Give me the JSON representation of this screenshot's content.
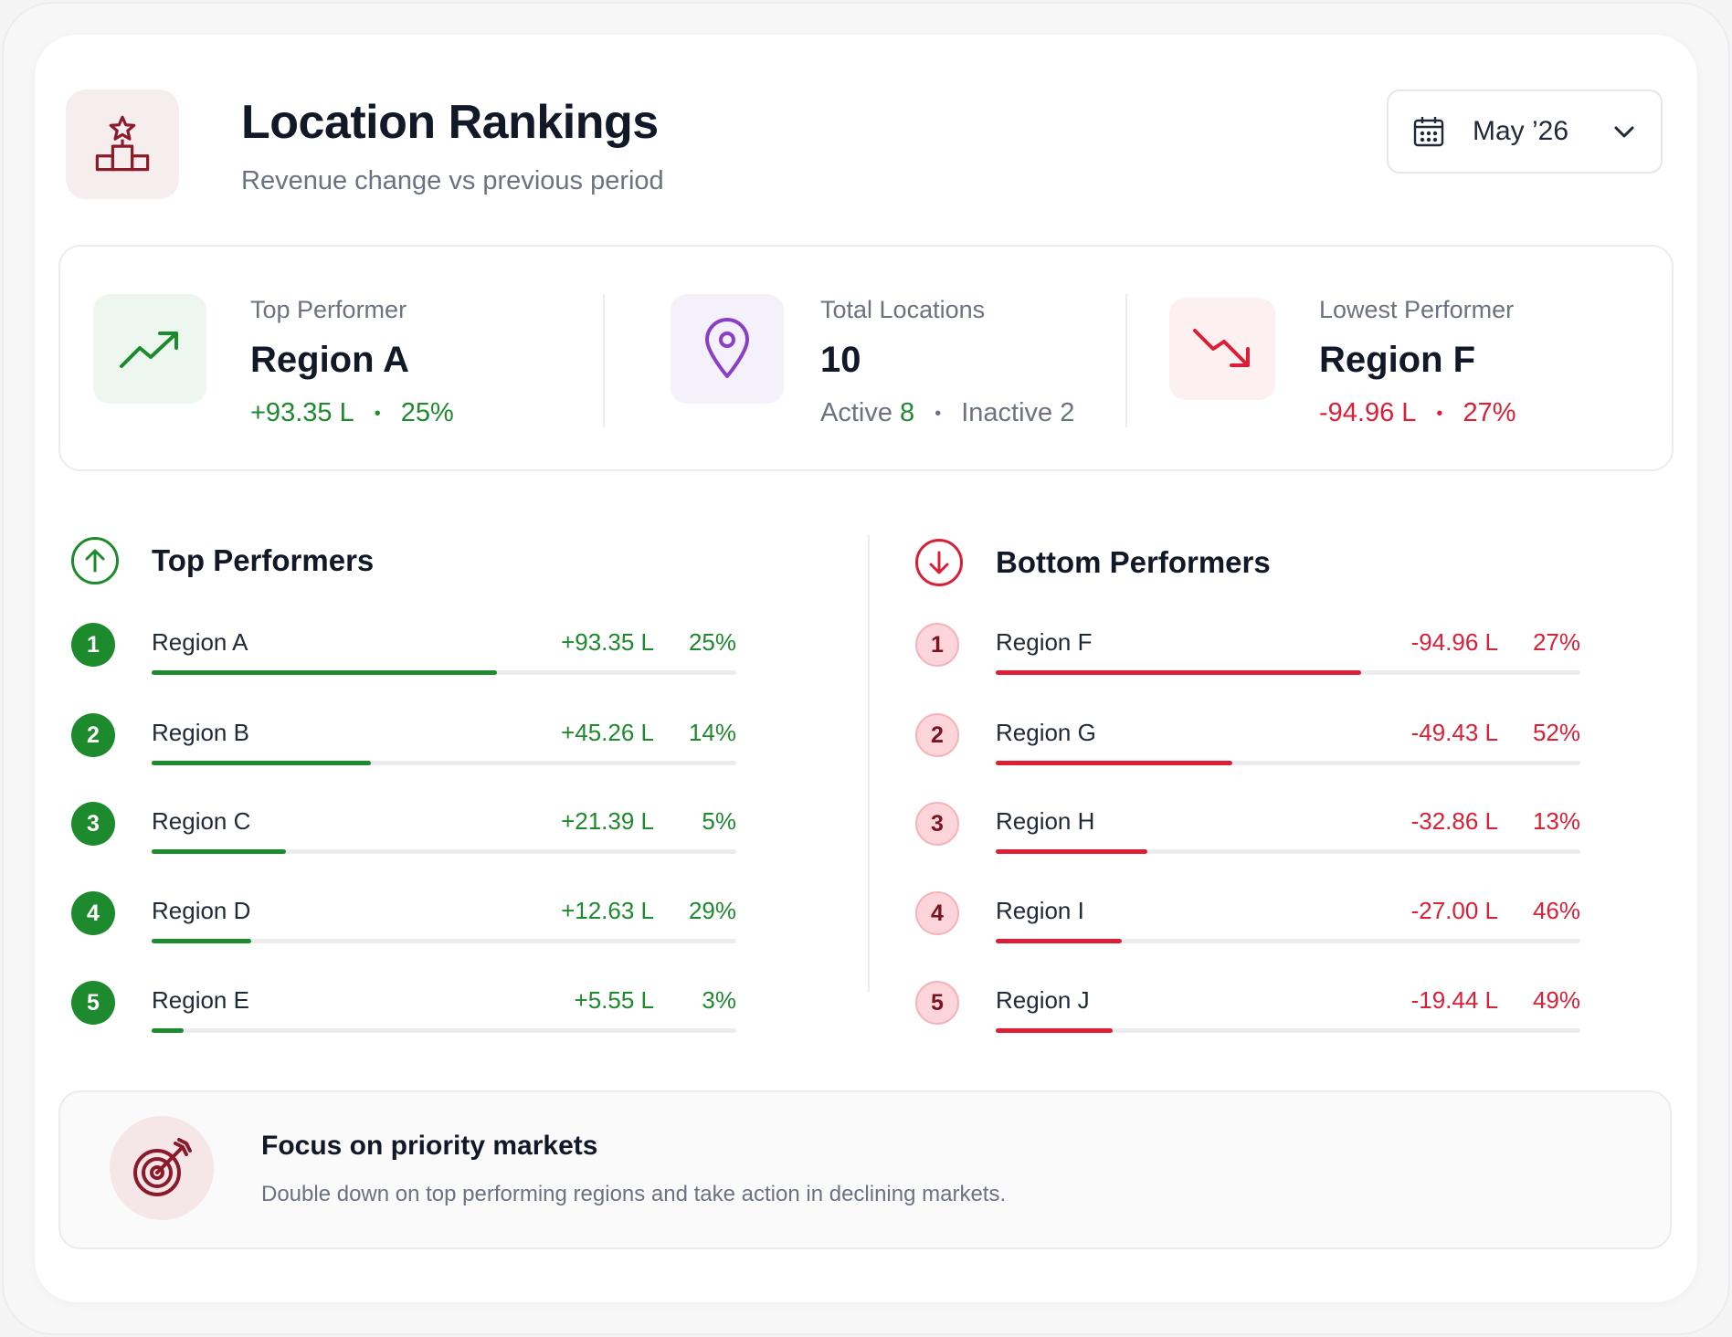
{
  "header": {
    "title": "Location Rankings",
    "subtitle": "Revenue change vs previous period",
    "date_label": "May ’26",
    "icon": "podium-star-icon"
  },
  "stats": {
    "top": {
      "label": "Top Performer",
      "value": "Region A",
      "change": "+93.35 L",
      "pct": "25%",
      "icon": "trending-up-icon"
    },
    "total": {
      "label": "Total Locations",
      "value": "10",
      "active_label": "Active",
      "active_count": "8",
      "inactive_label": "Inactive",
      "inactive_count": "2",
      "icon": "map-pin-icon"
    },
    "lowest": {
      "label": "Lowest Performer",
      "value": "Region F",
      "change": "-94.96 L",
      "pct": "27%",
      "icon": "trending-down-icon"
    },
    "separator": "•"
  },
  "top_performers": {
    "title": "Top Performers",
    "rows": [
      {
        "rank": "1",
        "name": "Region A",
        "value": "+93.35 L",
        "pct": "25%",
        "bar": 0.59
      },
      {
        "rank": "2",
        "name": "Region B",
        "value": "+45.26 L",
        "pct": "14%",
        "bar": 0.375
      },
      {
        "rank": "3",
        "name": "Region C",
        "value": "+21.39 L",
        "pct": "5%",
        "bar": 0.23
      },
      {
        "rank": "4",
        "name": "Region D",
        "value": "+12.63 L",
        "pct": "29%",
        "bar": 0.17
      },
      {
        "rank": "5",
        "name": "Region E",
        "value": "+5.55 L",
        "pct": "3%",
        "bar": 0.055
      }
    ]
  },
  "bottom_performers": {
    "title": "Bottom Performers",
    "rows": [
      {
        "rank": "1",
        "name": "Region F",
        "value": "-94.96 L",
        "pct": "27%",
        "bar": 0.625
      },
      {
        "rank": "2",
        "name": "Region G",
        "value": "-49.43 L",
        "pct": "52%",
        "bar": 0.405
      },
      {
        "rank": "3",
        "name": "Region H",
        "value": "-32.86 L",
        "pct": "13%",
        "bar": 0.26
      },
      {
        "rank": "4",
        "name": "Region I",
        "value": "-27.00 L",
        "pct": "46%",
        "bar": 0.215
      },
      {
        "rank": "5",
        "name": "Region J",
        "value": "-19.44 L",
        "pct": "49%",
        "bar": 0.2
      }
    ]
  },
  "footer": {
    "title": "Focus on priority markets",
    "text": "Double down on top performing regions and take action in declining markets.",
    "icon": "target-arrow-icon"
  },
  "colors": {
    "positive": "#1e8a2e",
    "negative": "#dc1f36",
    "brand": "#8b1a2b"
  }
}
